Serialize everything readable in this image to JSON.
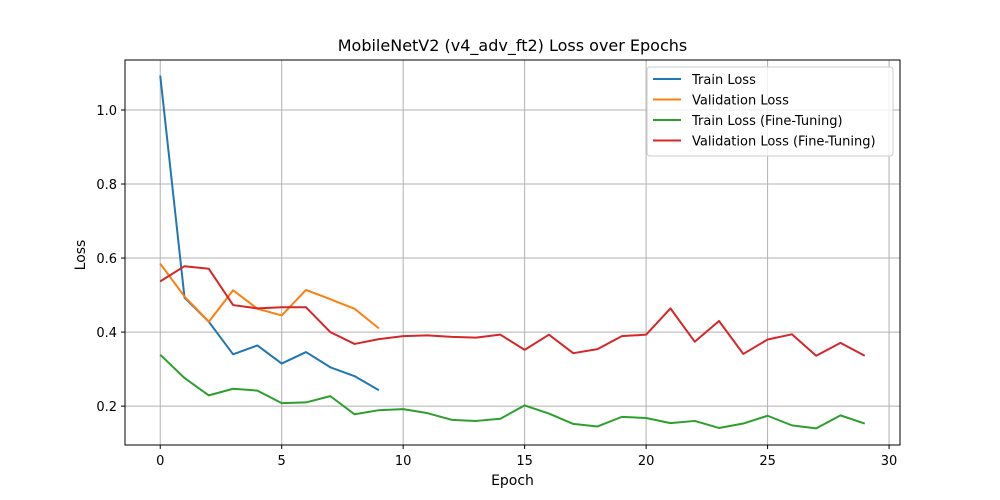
{
  "chart_data": {
    "type": "line",
    "title": "MobileNetV2 (v4_adv_ft2) Loss over Epochs",
    "xlabel": "Epoch",
    "ylabel": "Loss",
    "xlim": [
      -1.45,
      30.45
    ],
    "ylim": [
      0.095,
      1.135
    ],
    "xticks": [
      0,
      5,
      10,
      15,
      20,
      25,
      30
    ],
    "yticks": [
      0.2,
      0.4,
      0.6,
      0.8,
      1.0
    ],
    "xtick_labels": [
      "0",
      "5",
      "10",
      "15",
      "20",
      "25",
      "30"
    ],
    "ytick_labels": [
      "0.2",
      "0.4",
      "0.6",
      "0.8",
      "1.0"
    ],
    "grid": true,
    "legend_position": "top-right",
    "series": [
      {
        "name": "Train Loss",
        "color": "#1f77b4",
        "x": [
          0,
          1,
          2,
          3,
          4,
          5,
          6,
          7,
          8,
          9
        ],
        "values": [
          1.093,
          0.493,
          0.428,
          0.34,
          0.364,
          0.315,
          0.346,
          0.305,
          0.281,
          0.243
        ]
      },
      {
        "name": "Validation Loss",
        "color": "#ff7f0e",
        "x": [
          0,
          1,
          2,
          3,
          4,
          5,
          6,
          7,
          8,
          9
        ],
        "values": [
          0.585,
          0.496,
          0.428,
          0.513,
          0.463,
          0.445,
          0.514,
          0.489,
          0.463,
          0.41
        ]
      },
      {
        "name": "Train Loss (Fine-Tuning)",
        "color": "#2ca02c",
        "x": [
          0,
          1,
          2,
          3,
          4,
          5,
          6,
          7,
          8,
          9,
          10,
          11,
          12,
          13,
          14,
          15,
          16,
          17,
          18,
          19,
          20,
          21,
          22,
          23,
          24,
          25,
          26,
          27,
          28,
          29
        ],
        "values": [
          0.339,
          0.276,
          0.229,
          0.247,
          0.242,
          0.208,
          0.21,
          0.227,
          0.178,
          0.189,
          0.192,
          0.181,
          0.163,
          0.16,
          0.166,
          0.202,
          0.18,
          0.152,
          0.145,
          0.171,
          0.168,
          0.154,
          0.16,
          0.141,
          0.153,
          0.174,
          0.148,
          0.14,
          0.175,
          0.153
        ]
      },
      {
        "name": "Validation Loss (Fine-Tuning)",
        "color": "#d62728",
        "x": [
          0,
          1,
          2,
          3,
          4,
          5,
          6,
          7,
          8,
          9,
          10,
          11,
          12,
          13,
          14,
          15,
          16,
          17,
          18,
          19,
          20,
          21,
          22,
          23,
          24,
          25,
          26,
          27,
          28,
          29
        ],
        "values": [
          0.537,
          0.578,
          0.571,
          0.473,
          0.464,
          0.467,
          0.467,
          0.4,
          0.368,
          0.381,
          0.389,
          0.391,
          0.387,
          0.385,
          0.393,
          0.352,
          0.393,
          0.343,
          0.354,
          0.389,
          0.393,
          0.464,
          0.374,
          0.43,
          0.341,
          0.38,
          0.394,
          0.336,
          0.371,
          0.336
        ]
      }
    ]
  }
}
